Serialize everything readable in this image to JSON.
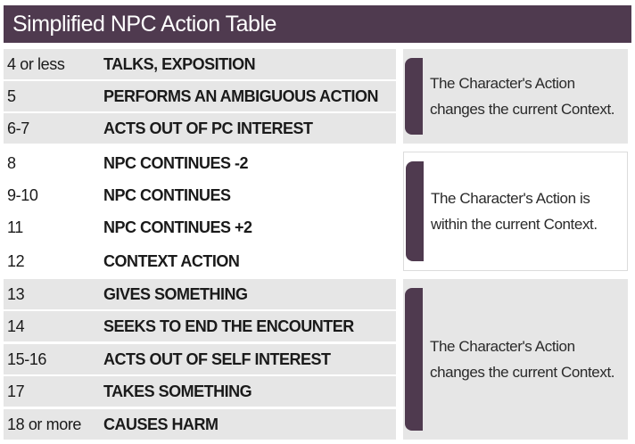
{
  "title": "Simplified NPC Action Table",
  "rows": [
    {
      "roll": "4 or less",
      "action": "TALKS, EXPOSITION"
    },
    {
      "roll": "5",
      "action": "PERFORMS AN AMBIGUOUS ACTION"
    },
    {
      "roll": "6-7",
      "action": "ACTS OUT OF PC INTEREST"
    },
    {
      "roll": "8",
      "action": "NPC CONTINUES -2"
    },
    {
      "roll": "9-10",
      "action": "NPC CONTINUES"
    },
    {
      "roll": "11",
      "action": "NPC CONTINUES +2"
    },
    {
      "roll": "12",
      "action": "CONTEXT ACTION"
    },
    {
      "roll": "13",
      "action": "GIVES SOMETHING"
    },
    {
      "roll": "14",
      "action": "SEEKS TO END THE ENCOUNTER"
    },
    {
      "roll": "15-16",
      "action": "ACTS OUT OF SELF INTEREST"
    },
    {
      "roll": "17",
      "action": "TAKES SOMETHING"
    },
    {
      "roll": "18 or more",
      "action": "CAUSES HARM"
    }
  ],
  "notes": [
    {
      "line1": "The Character's Action",
      "line2": "changes the current Context."
    },
    {
      "line1": "The Character's Action is",
      "line2": "within the current Context."
    },
    {
      "line1": "The Character's Action",
      "line2": "changes the current Context."
    }
  ],
  "colors": {
    "header": "#4f3a4f",
    "shade": "#e6e6e6"
  }
}
